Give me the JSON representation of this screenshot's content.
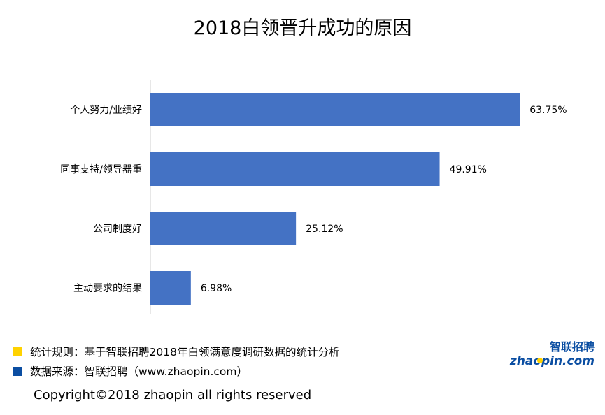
{
  "chart_data": {
    "type": "bar",
    "orientation": "horizontal",
    "title": "2018白领晋升成功的原因",
    "categories": [
      "个人努力/业绩好",
      "同事支持/领导器重",
      "公司制度好",
      "主动要求的结果"
    ],
    "values": [
      63.75,
      49.91,
      25.12,
      6.98
    ],
    "value_labels": [
      "63.75%",
      "49.91%",
      "25.12%",
      "6.98%"
    ],
    "xlim": [
      0,
      70
    ],
    "grid": false,
    "legend": "none",
    "bar_color": "#4472c4"
  },
  "notes": {
    "rule": "统计规则：基于智联招聘2018年白领满意度调研数据的统计分析",
    "rule_color": "#ffd200",
    "source": "数据来源：智联招聘（www.zhaopin.com）",
    "source_color": "#0b4ea2"
  },
  "logo": {
    "top": "智联招聘",
    "bottom": "zhaopin.com"
  },
  "copyright": "Copyright©2018 zhaopin all rights reserved"
}
